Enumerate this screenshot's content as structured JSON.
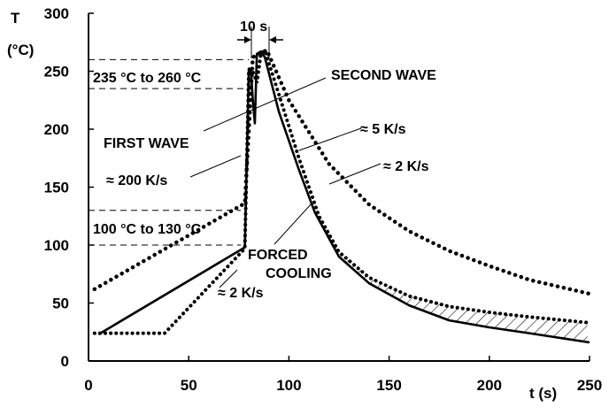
{
  "chart_data": {
    "type": "line",
    "xlabel": "t (s)",
    "ylabel_line1": "T",
    "ylabel_line2": "(°C)",
    "xlim": [
      0,
      250
    ],
    "ylim": [
      0,
      300
    ],
    "x_ticks": [
      "0",
      "50",
      "100",
      "150",
      "200",
      "250"
    ],
    "y_ticks": [
      "0",
      "50",
      "100",
      "150",
      "200",
      "250",
      "300"
    ],
    "grid": false,
    "series": [
      {
        "style": "solid",
        "x": [
          5,
          78,
          80,
          81,
          82,
          83,
          84,
          86,
          88,
          95,
          105,
          113,
          125,
          140,
          160,
          180,
          200,
          220,
          250
        ],
        "y": [
          23,
          98,
          252,
          252,
          225,
          205,
          265,
          267,
          262,
          215,
          165,
          128,
          90,
          67,
          48,
          35,
          29,
          24,
          16
        ]
      },
      {
        "style": "dotted",
        "x": [
          3,
          38,
          78,
          80,
          82,
          84,
          86,
          88,
          95,
          105,
          115,
          125,
          140,
          160,
          180,
          200,
          220,
          250
        ],
        "y": [
          24,
          24,
          97,
          252,
          250,
          240,
          265,
          268,
          230,
          175,
          125,
          94,
          72,
          56,
          47,
          42,
          38,
          33
        ]
      },
      {
        "style": "dotted-heavy",
        "x": [
          3,
          78,
          82,
          86,
          89,
          100,
          120,
          140,
          160,
          180,
          200,
          220,
          250
        ],
        "y": [
          62,
          136,
          262,
          266,
          268,
          225,
          170,
          135,
          112,
          95,
          82,
          70,
          58
        ]
      }
    ],
    "annotations": {
      "ten_s": "10 s",
      "range_high": "235 °C to 260 °C",
      "range_low": "100 °C to 130 °C",
      "second_wave": "SECOND WAVE",
      "first_wave": "FIRST WAVE",
      "rate_200": "≈ 200 K/s",
      "rate_5": "≈ 5 K/s",
      "rate_2_upper": "≈ 2 K/s",
      "rate_2_lower": "≈ 2 K/s",
      "forced_1": "FORCED",
      "forced_2": "COOLING"
    }
  }
}
